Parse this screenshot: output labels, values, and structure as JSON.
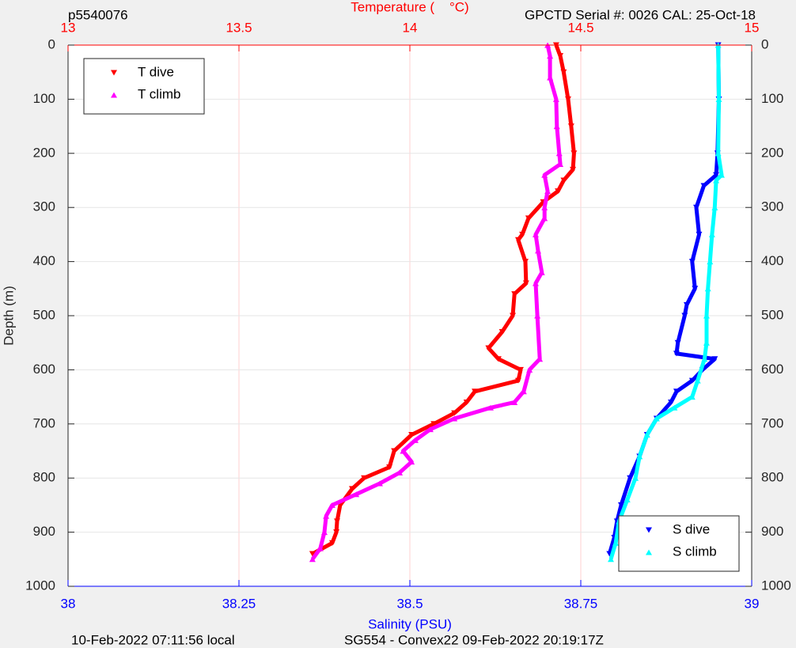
{
  "chart_data": {
    "type": "scatter",
    "annotations": [
      "p5540076",
      "GPCTD Serial #: 0026 CAL: 25-Oct-18",
      "10-Feb-2022 07:11:56 local",
      "SG554 - Convex22 09-Feb-2022 20:19:17Z"
    ],
    "x2label": "Temperature (    °C)",
    "xlabel": "Salinity (PSU)",
    "ylabel": "Depth (m)",
    "x2lim": [
      13,
      15
    ],
    "x2ticks": [
      13,
      13.5,
      14,
      14.5,
      15
    ],
    "x2color": "#ff0000",
    "xlim": [
      38,
      39
    ],
    "xticks": [
      38,
      38.25,
      38.5,
      38.75,
      39
    ],
    "xcolor": "#0000ff",
    "ylim": [
      0,
      1000
    ],
    "yticks": [
      0,
      100,
      200,
      300,
      400,
      500,
      600,
      700,
      800,
      900,
      1000
    ],
    "y_reversed": true,
    "grid": true,
    "legend_loc_x2": "upper left",
    "legend_loc_x": "lower right",
    "series": [
      {
        "name": "T dive",
        "color": "#ff0000",
        "marker": "v",
        "axis": "x2",
        "y": [
          0,
          20,
          50,
          100,
          150,
          200,
          230,
          250,
          270,
          290,
          320,
          350,
          360,
          400,
          440,
          460,
          500,
          530,
          560,
          580,
          600,
          620,
          640,
          660,
          680,
          700,
          720,
          750,
          780,
          800,
          820,
          850,
          880,
          900,
          920,
          940
        ],
        "x": [
          14.428,
          14.44,
          14.45,
          14.463,
          14.472,
          14.48,
          14.477,
          14.45,
          14.433,
          14.39,
          14.347,
          14.329,
          14.317,
          14.338,
          14.34,
          14.306,
          14.301,
          14.27,
          14.23,
          14.259,
          14.324,
          14.317,
          14.19,
          14.166,
          14.13,
          14.07,
          14.005,
          13.954,
          13.94,
          13.866,
          13.831,
          13.796,
          13.787,
          13.785,
          13.773,
          13.715
        ]
      },
      {
        "name": "T climb",
        "color": "#ff00ff",
        "marker": "^",
        "axis": "x2",
        "y": [
          950,
          930,
          900,
          870,
          850,
          830,
          810,
          790,
          770,
          750,
          730,
          710,
          690,
          670,
          660,
          640,
          600,
          580,
          500,
          440,
          420,
          380,
          350,
          320,
          300,
          270,
          240,
          220,
          200,
          150,
          100,
          60,
          20,
          0
        ],
        "x": [
          13.715,
          13.738,
          13.75,
          13.755,
          13.773,
          13.843,
          13.912,
          13.97,
          14.005,
          13.98,
          14.016,
          14.06,
          14.13,
          14.236,
          14.306,
          14.333,
          14.35,
          14.38,
          14.373,
          14.368,
          14.386,
          14.375,
          14.368,
          14.394,
          14.394,
          14.403,
          14.394,
          14.44,
          14.437,
          14.43,
          14.428,
          14.41,
          14.41,
          14.403
        ]
      },
      {
        "name": "S dive",
        "color": "#0000ff",
        "marker": "v",
        "axis": "x",
        "y": [
          0,
          100,
          200,
          240,
          260,
          300,
          350,
          400,
          450,
          480,
          500,
          550,
          570,
          580,
          600,
          620,
          640,
          660,
          690,
          720,
          760,
          800,
          850,
          880,
          910,
          940
        ],
        "x": [
          38.951,
          38.952,
          38.95,
          38.948,
          38.93,
          38.919,
          38.923,
          38.913,
          38.917,
          38.905,
          38.902,
          38.892,
          38.89,
          38.946,
          38.928,
          38.913,
          38.89,
          38.882,
          38.861,
          38.847,
          38.836,
          38.822,
          38.809,
          38.803,
          38.799,
          38.792
        ]
      },
      {
        "name": "S climb",
        "color": "#00ffff",
        "marker": "^",
        "axis": "x",
        "y": [
          950,
          920,
          880,
          840,
          800,
          760,
          720,
          690,
          670,
          650,
          620,
          580,
          550,
          500,
          450,
          400,
          350,
          300,
          250,
          240,
          200,
          100,
          0
        ],
        "x": [
          38.794,
          38.801,
          38.806,
          38.818,
          38.83,
          38.836,
          38.847,
          38.861,
          38.887,
          38.913,
          38.921,
          38.931,
          38.934,
          38.934,
          38.936,
          38.939,
          38.942,
          38.946,
          38.948,
          38.956,
          38.951,
          38.952,
          38.951
        ]
      }
    ]
  }
}
